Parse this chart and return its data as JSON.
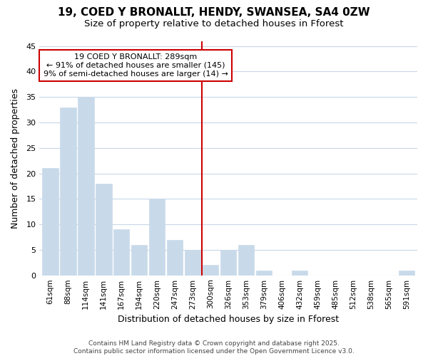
{
  "title1": "19, COED Y BRONALLT, HENDY, SWANSEA, SA4 0ZW",
  "title2": "Size of property relative to detached houses in Fforest",
  "xlabel": "Distribution of detached houses by size in Fforest",
  "ylabel": "Number of detached properties",
  "categories": [
    "61sqm",
    "88sqm",
    "114sqm",
    "141sqm",
    "167sqm",
    "194sqm",
    "220sqm",
    "247sqm",
    "273sqm",
    "300sqm",
    "326sqm",
    "353sqm",
    "379sqm",
    "406sqm",
    "432sqm",
    "459sqm",
    "485sqm",
    "512sqm",
    "538sqm",
    "565sqm",
    "591sqm"
  ],
  "values": [
    21,
    33,
    35,
    18,
    9,
    6,
    15,
    7,
    5,
    2,
    5,
    6,
    1,
    0,
    1,
    0,
    0,
    0,
    0,
    0,
    1
  ],
  "bar_color": "#c8daea",
  "bar_edge_color": "#c8daea",
  "vline_x": 8.5,
  "vline_color": "#cc0000",
  "annotation_line1": "19 COED Y BRONALLT: 289sqm",
  "annotation_line2": "← 91% of detached houses are smaller (145)",
  "annotation_line3": "9% of semi-detached houses are larger (14) →",
  "annotation_box_color": "#cc0000",
  "annotation_bg": "#ffffff",
  "ylim": [
    0,
    46
  ],
  "yticks": [
    0,
    5,
    10,
    15,
    20,
    25,
    30,
    35,
    40,
    45
  ],
  "bg_color": "#ffffff",
  "grid_color": "#c8d8e8",
  "footer": "Contains HM Land Registry data © Crown copyright and database right 2025.\nContains public sector information licensed under the Open Government Licence v3.0."
}
